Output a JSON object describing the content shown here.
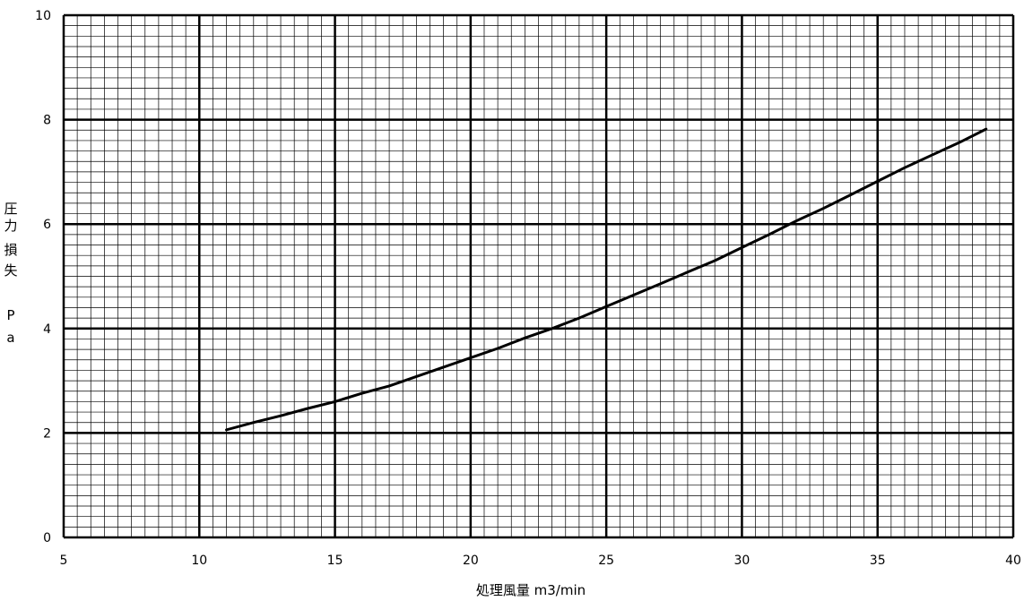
{
  "chart_data": {
    "type": "line",
    "title": "",
    "xlabel": "処理風量 m3/min",
    "ylabel_chars": [
      "圧",
      "力",
      "損",
      "失",
      "",
      "P",
      "a"
    ],
    "xlim": [
      5,
      40
    ],
    "ylim": [
      0,
      10
    ],
    "x_major_ticks": [
      5,
      10,
      15,
      20,
      25,
      30,
      35,
      40
    ],
    "y_major_ticks": [
      0,
      2,
      4,
      6,
      8,
      10
    ],
    "x_tick_labels": [
      "5",
      "10",
      "15",
      "20",
      "25",
      "30",
      "35",
      "40"
    ],
    "y_tick_labels": [
      "0",
      "2",
      "4",
      "6",
      "8",
      "10"
    ],
    "x_minor_step": 0.5,
    "y_minor_step": 0.2,
    "grid": true,
    "legend": "none",
    "series": [
      {
        "x": [
          11,
          12,
          13,
          14,
          15,
          16,
          17,
          18,
          19,
          20,
          21,
          22,
          23,
          24,
          25,
          26,
          27,
          28,
          29,
          30,
          31,
          32,
          33,
          34,
          35,
          36,
          37,
          38,
          39
        ],
        "y": [
          2.06,
          2.2,
          2.33,
          2.47,
          2.6,
          2.76,
          2.9,
          3.08,
          3.26,
          3.44,
          3.62,
          3.82,
          4.0,
          4.2,
          4.42,
          4.64,
          4.86,
          5.08,
          5.3,
          5.55,
          5.8,
          6.06,
          6.3,
          6.56,
          6.82,
          7.08,
          7.32,
          7.56,
          7.82
        ],
        "color": "#000000"
      }
    ]
  }
}
